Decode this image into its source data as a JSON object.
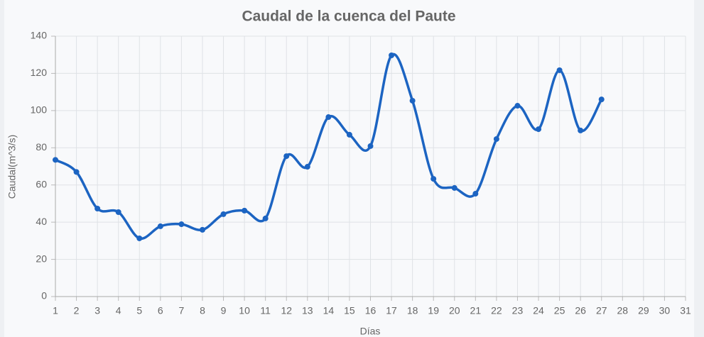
{
  "chart_data": {
    "type": "line",
    "title": "Caudal de la cuenca del Paute",
    "x_label": "Días",
    "y_label": "Caudal(m^3/s)",
    "categories": [
      "1",
      "2",
      "3",
      "4",
      "5",
      "6",
      "7",
      "8",
      "9",
      "10",
      "11",
      "12",
      "13",
      "14",
      "15",
      "16",
      "17",
      "18",
      "19",
      "20",
      "21",
      "22",
      "23",
      "24",
      "25",
      "26",
      "27",
      "28",
      "29",
      "30",
      "31"
    ],
    "series": [
      {
        "name": "Caudal",
        "color": "#1c64c2",
        "values": [
          73.5,
          67,
          47.3,
          45.4,
          31.3,
          37.8,
          38.9,
          35.9,
          44.3,
          46.2,
          42,
          75.5,
          69.8,
          96.5,
          87,
          80.9,
          129.7,
          105.3,
          63.3,
          58.4,
          55.3,
          84.7,
          102.6,
          90,
          121.7,
          89.3,
          106,
          null,
          null,
          null,
          null
        ]
      }
    ],
    "ylim": [
      0,
      140
    ],
    "yticks": [
      0,
      20,
      40,
      60,
      80,
      100,
      120,
      140
    ],
    "grid": true
  }
}
